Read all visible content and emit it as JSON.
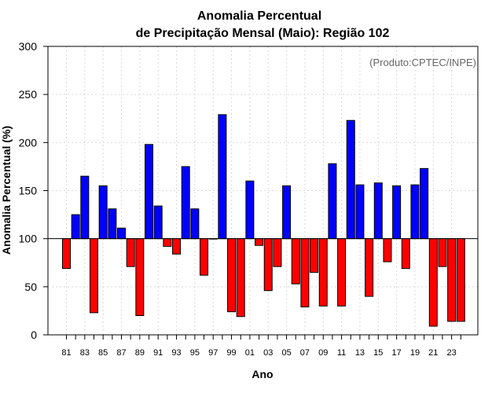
{
  "chart_data": {
    "type": "bar",
    "title_line1": "Anomalia Percentual",
    "title_line2": "de Precipitação Mensal (Maio): Região 102",
    "xlabel": "Ano",
    "ylabel": "Anomalia Percentual (%)",
    "credit": "(Produto:CPTEC/INPE)",
    "baseline": 100,
    "ylim": [
      0,
      300
    ],
    "yticks": [
      "0",
      "50",
      "100",
      "150",
      "200",
      "250",
      "300"
    ],
    "xtick_labels": [
      "81",
      "83",
      "85",
      "87",
      "89",
      "91",
      "93",
      "95",
      "97",
      "99",
      "01",
      "03",
      "05",
      "07",
      "09",
      "11",
      "13",
      "15",
      "17",
      "19",
      "21",
      "23"
    ],
    "categories": [
      "1981",
      "1982",
      "1983",
      "1984",
      "1985",
      "1986",
      "1987",
      "1988",
      "1989",
      "1990",
      "1991",
      "1992",
      "1993",
      "1994",
      "1995",
      "1996",
      "1997",
      "1998",
      "1999",
      "2000",
      "2001",
      "2002",
      "2003",
      "2004",
      "2005",
      "2006",
      "2007",
      "2008",
      "2009",
      "2010",
      "2011",
      "2012",
      "2013",
      "2014",
      "2015",
      "2016",
      "2017",
      "2018",
      "2019",
      "2020",
      "2021",
      "2022",
      "2023",
      "2024"
    ],
    "values": [
      69,
      125,
      165,
      23,
      155,
      131,
      111,
      71,
      20,
      198,
      134,
      92,
      84,
      175,
      131,
      62,
      100,
      229,
      24,
      19,
      160,
      93,
      46,
      71,
      155,
      53,
      29,
      65,
      30,
      178,
      30,
      223,
      156,
      40,
      158,
      76,
      155,
      69,
      156,
      173,
      9,
      71,
      14,
      14
    ],
    "colors": {
      "above": "#0000ff",
      "below": "#ff0000"
    },
    "grid": true
  }
}
